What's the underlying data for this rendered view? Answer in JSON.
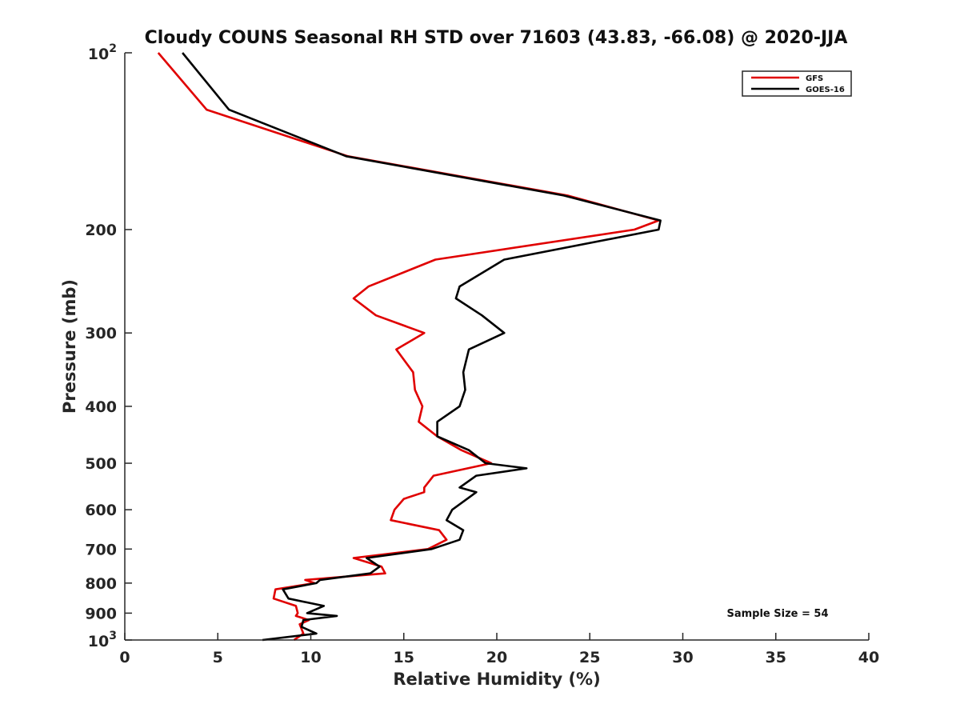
{
  "chart_data": {
    "type": "line",
    "title": "Cloudy COUNS Seasonal RH STD over 71603 (43.83, -66.08) @ 2020-JJA",
    "xlabel": "Relative Humidity (%)",
    "ylabel": "Pressure (mb)",
    "xlim": [
      0,
      40
    ],
    "ylim": [
      100,
      1000
    ],
    "yscale": "log",
    "y_reversed": true,
    "xticks": [
      0,
      5,
      10,
      15,
      20,
      25,
      30,
      35,
      40
    ],
    "xtick_labels": [
      "0",
      "5",
      "10",
      "15",
      "20",
      "25",
      "30",
      "35",
      "40"
    ],
    "yticks": [
      200,
      300,
      400,
      500,
      600,
      700,
      800,
      900
    ],
    "ytick_labels": [
      "200",
      "300",
      "400",
      "500",
      "600",
      "700",
      "800",
      "900"
    ],
    "y_power_ticks": [
      {
        "value": 100,
        "base": "10",
        "exp": "2"
      },
      {
        "value": 1000,
        "base": "10",
        "exp": "3"
      }
    ],
    "legend_position": "top-right",
    "annotation": "Sample Size = 54",
    "series": [
      {
        "name": "GFS",
        "color": "#e00000",
        "points": [
          [
            1.8,
            100
          ],
          [
            4.4,
            125
          ],
          [
            12.0,
            150
          ],
          [
            23.8,
            175
          ],
          [
            28.7,
            193
          ],
          [
            27.4,
            200
          ],
          [
            16.7,
            225
          ],
          [
            13.1,
            250
          ],
          [
            12.3,
            262
          ],
          [
            13.5,
            280
          ],
          [
            16.1,
            300
          ],
          [
            14.6,
            320
          ],
          [
            15.5,
            350
          ],
          [
            15.6,
            375
          ],
          [
            16.0,
            400
          ],
          [
            15.8,
            425
          ],
          [
            16.8,
            450
          ],
          [
            18.1,
            475
          ],
          [
            19.7,
            500
          ],
          [
            16.6,
            525
          ],
          [
            16.1,
            550
          ],
          [
            16.1,
            560
          ],
          [
            15.0,
            575
          ],
          [
            14.5,
            600
          ],
          [
            14.3,
            625
          ],
          [
            16.9,
            650
          ],
          [
            17.3,
            675
          ],
          [
            16.3,
            700
          ],
          [
            12.3,
            725
          ],
          [
            13.8,
            750
          ],
          [
            14.0,
            770
          ],
          [
            9.7,
            790
          ],
          [
            10.2,
            800
          ],
          [
            8.1,
            820
          ],
          [
            8.0,
            850
          ],
          [
            9.2,
            875
          ],
          [
            9.3,
            900
          ],
          [
            9.2,
            910
          ],
          [
            9.9,
            925
          ],
          [
            9.4,
            940
          ],
          [
            9.6,
            975
          ],
          [
            9.1,
            1000
          ]
        ]
      },
      {
        "name": "GOES-16",
        "color": "#000000",
        "points": [
          [
            3.1,
            100
          ],
          [
            5.6,
            125
          ],
          [
            11.9,
            150
          ],
          [
            23.6,
            175
          ],
          [
            28.8,
            193
          ],
          [
            28.7,
            200
          ],
          [
            20.4,
            225
          ],
          [
            18.0,
            250
          ],
          [
            17.8,
            262
          ],
          [
            19.2,
            280
          ],
          [
            20.4,
            300
          ],
          [
            18.5,
            320
          ],
          [
            18.2,
            350
          ],
          [
            18.3,
            375
          ],
          [
            18.0,
            400
          ],
          [
            16.8,
            425
          ],
          [
            16.8,
            450
          ],
          [
            18.5,
            475
          ],
          [
            19.4,
            500
          ],
          [
            21.6,
            510
          ],
          [
            18.9,
            525
          ],
          [
            18.0,
            550
          ],
          [
            18.9,
            560
          ],
          [
            17.6,
            600
          ],
          [
            17.3,
            625
          ],
          [
            18.2,
            650
          ],
          [
            18.0,
            675
          ],
          [
            16.5,
            700
          ],
          [
            13.0,
            725
          ],
          [
            13.7,
            750
          ],
          [
            13.2,
            770
          ],
          [
            10.5,
            790
          ],
          [
            10.3,
            800
          ],
          [
            8.5,
            820
          ],
          [
            8.8,
            850
          ],
          [
            10.7,
            875
          ],
          [
            9.8,
            900
          ],
          [
            11.4,
            910
          ],
          [
            9.6,
            925
          ],
          [
            9.5,
            950
          ],
          [
            10.3,
            975
          ],
          [
            7.4,
            1000
          ]
        ]
      }
    ]
  }
}
